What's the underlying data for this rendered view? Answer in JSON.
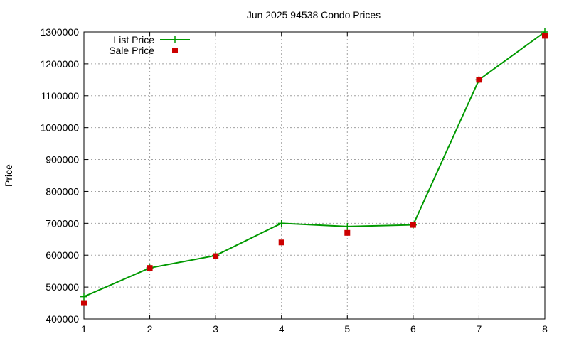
{
  "chart_data": {
    "type": "line",
    "title": "Jun 2025 94538 Condo Prices",
    "xlabel": "",
    "ylabel": "Price",
    "x": [
      1,
      2,
      3,
      4,
      5,
      6,
      7,
      8
    ],
    "xlim": [
      1,
      8
    ],
    "ylim": [
      400000,
      1300000
    ],
    "xticks": [
      "1",
      "2",
      "3",
      "4",
      "5",
      "6",
      "7",
      "8"
    ],
    "yticks": [
      "400000",
      "500000",
      "600000",
      "700000",
      "800000",
      "900000",
      "1000000",
      "1100000",
      "1200000",
      "1300000"
    ],
    "grid": true,
    "legend_position": "top-left",
    "series": [
      {
        "name": "List Price",
        "style": "line-with-plus-markers",
        "color": "#009900",
        "values": [
          470000,
          560000,
          599000,
          700000,
          690000,
          695000,
          1150000,
          1300000
        ]
      },
      {
        "name": "Sale Price",
        "style": "square-markers",
        "color": "#cc0000",
        "values": [
          450000,
          560000,
          597000,
          640000,
          670000,
          695000,
          1150000,
          1288000
        ]
      }
    ]
  }
}
